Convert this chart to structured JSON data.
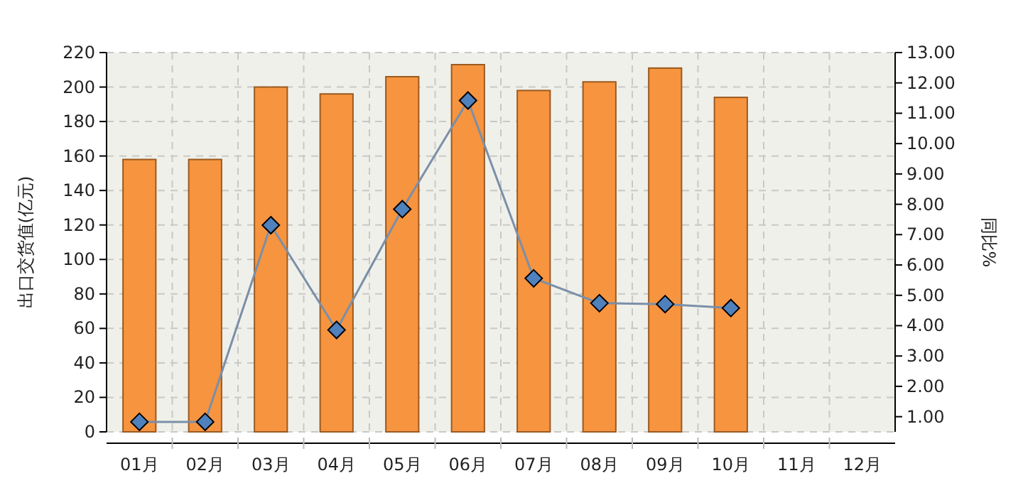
{
  "chart_data": {
    "type": "bar",
    "ylabel": "出口交货值(亿元)",
    "y2label": "同比%",
    "categories": [
      "01月",
      "02月",
      "03月",
      "04月",
      "05月",
      "06月",
      "07月",
      "08月",
      "09月",
      "10月",
      "11月",
      "12月"
    ],
    "series": [
      {
        "color": "#f7943f",
        "values": [
          158,
          158,
          200,
          196,
          206,
          213,
          198,
          203,
          211,
          194,
          null,
          null
        ]
      },
      {
        "type": "line",
        "axis": "y2",
        "color": "#4f81bd",
        "marker": "diamond",
        "values": [
          0.83,
          0.83,
          7.31,
          3.86,
          7.84,
          11.42,
          5.56,
          4.74,
          4.71,
          4.58,
          null,
          null
        ]
      }
    ],
    "ylim": [
      0,
      220
    ],
    "yticks": [
      0,
      20,
      40,
      60,
      80,
      100,
      120,
      140,
      160,
      180,
      200,
      220
    ],
    "y2lim": [
      0.5,
      13
    ],
    "y2ticks": [
      {
        "value": 1,
        "label": "1.00"
      },
      {
        "value": 2,
        "label": "2.00"
      },
      {
        "value": 3,
        "label": "3.00"
      },
      {
        "value": 4,
        "label": "4.00"
      },
      {
        "value": 5,
        "label": "5.00"
      },
      {
        "value": 6,
        "label": "6.00"
      },
      {
        "value": 7,
        "label": "7.00"
      },
      {
        "value": 8,
        "label": "8.00"
      },
      {
        "value": 9,
        "label": "9.00"
      },
      {
        "value": 10,
        "label": "10.00"
      },
      {
        "value": 11,
        "label": "11.00"
      },
      {
        "value": 12,
        "label": "12.00"
      },
      {
        "value": 13,
        "label": "13.00"
      }
    ],
    "grid": true
  }
}
